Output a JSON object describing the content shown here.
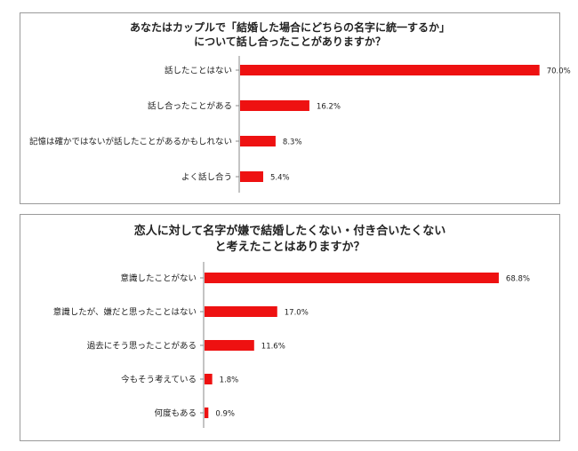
{
  "chart_data": [
    {
      "type": "bar",
      "orientation": "horizontal",
      "title_lines": [
        "あなたはカップルで「結婚した場合にどちらの名字に統一するか」",
        "について話し合ったことがありますか？"
      ],
      "categories": [
        "話したことはない",
        "話し合ったことがある",
        "記憶は確かではないが話したことがあるかもしれない",
        "よく話し合う"
      ],
      "values": [
        70.0,
        16.2,
        8.3,
        5.4
      ],
      "value_labels": [
        "70.0%",
        "16.2%",
        "8.3%",
        "5.4%"
      ],
      "unit": "%",
      "xlim": [
        0,
        100
      ],
      "bar_color": "#ee1111",
      "grid": false,
      "legend": "none"
    },
    {
      "type": "bar",
      "orientation": "horizontal",
      "title_lines": [
        "恋人に対して名字が嫌で結婚したくない・付き合いたくない",
        "と考えたことはありますか？"
      ],
      "categories": [
        "意識したことがない",
        "意識したが、嫌だと思ったことはない",
        "過去にそう思ったことがある",
        "今もそう考えている",
        "何度もある"
      ],
      "values": [
        68.8,
        17.0,
        11.6,
        1.8,
        0.9
      ],
      "value_labels": [
        "68.8%",
        "17.0%",
        "11.6%",
        "1.8%",
        "0.9%"
      ],
      "unit": "%",
      "xlim": [
        0,
        100
      ],
      "bar_color": "#ee1111",
      "grid": false,
      "legend": "none"
    }
  ]
}
